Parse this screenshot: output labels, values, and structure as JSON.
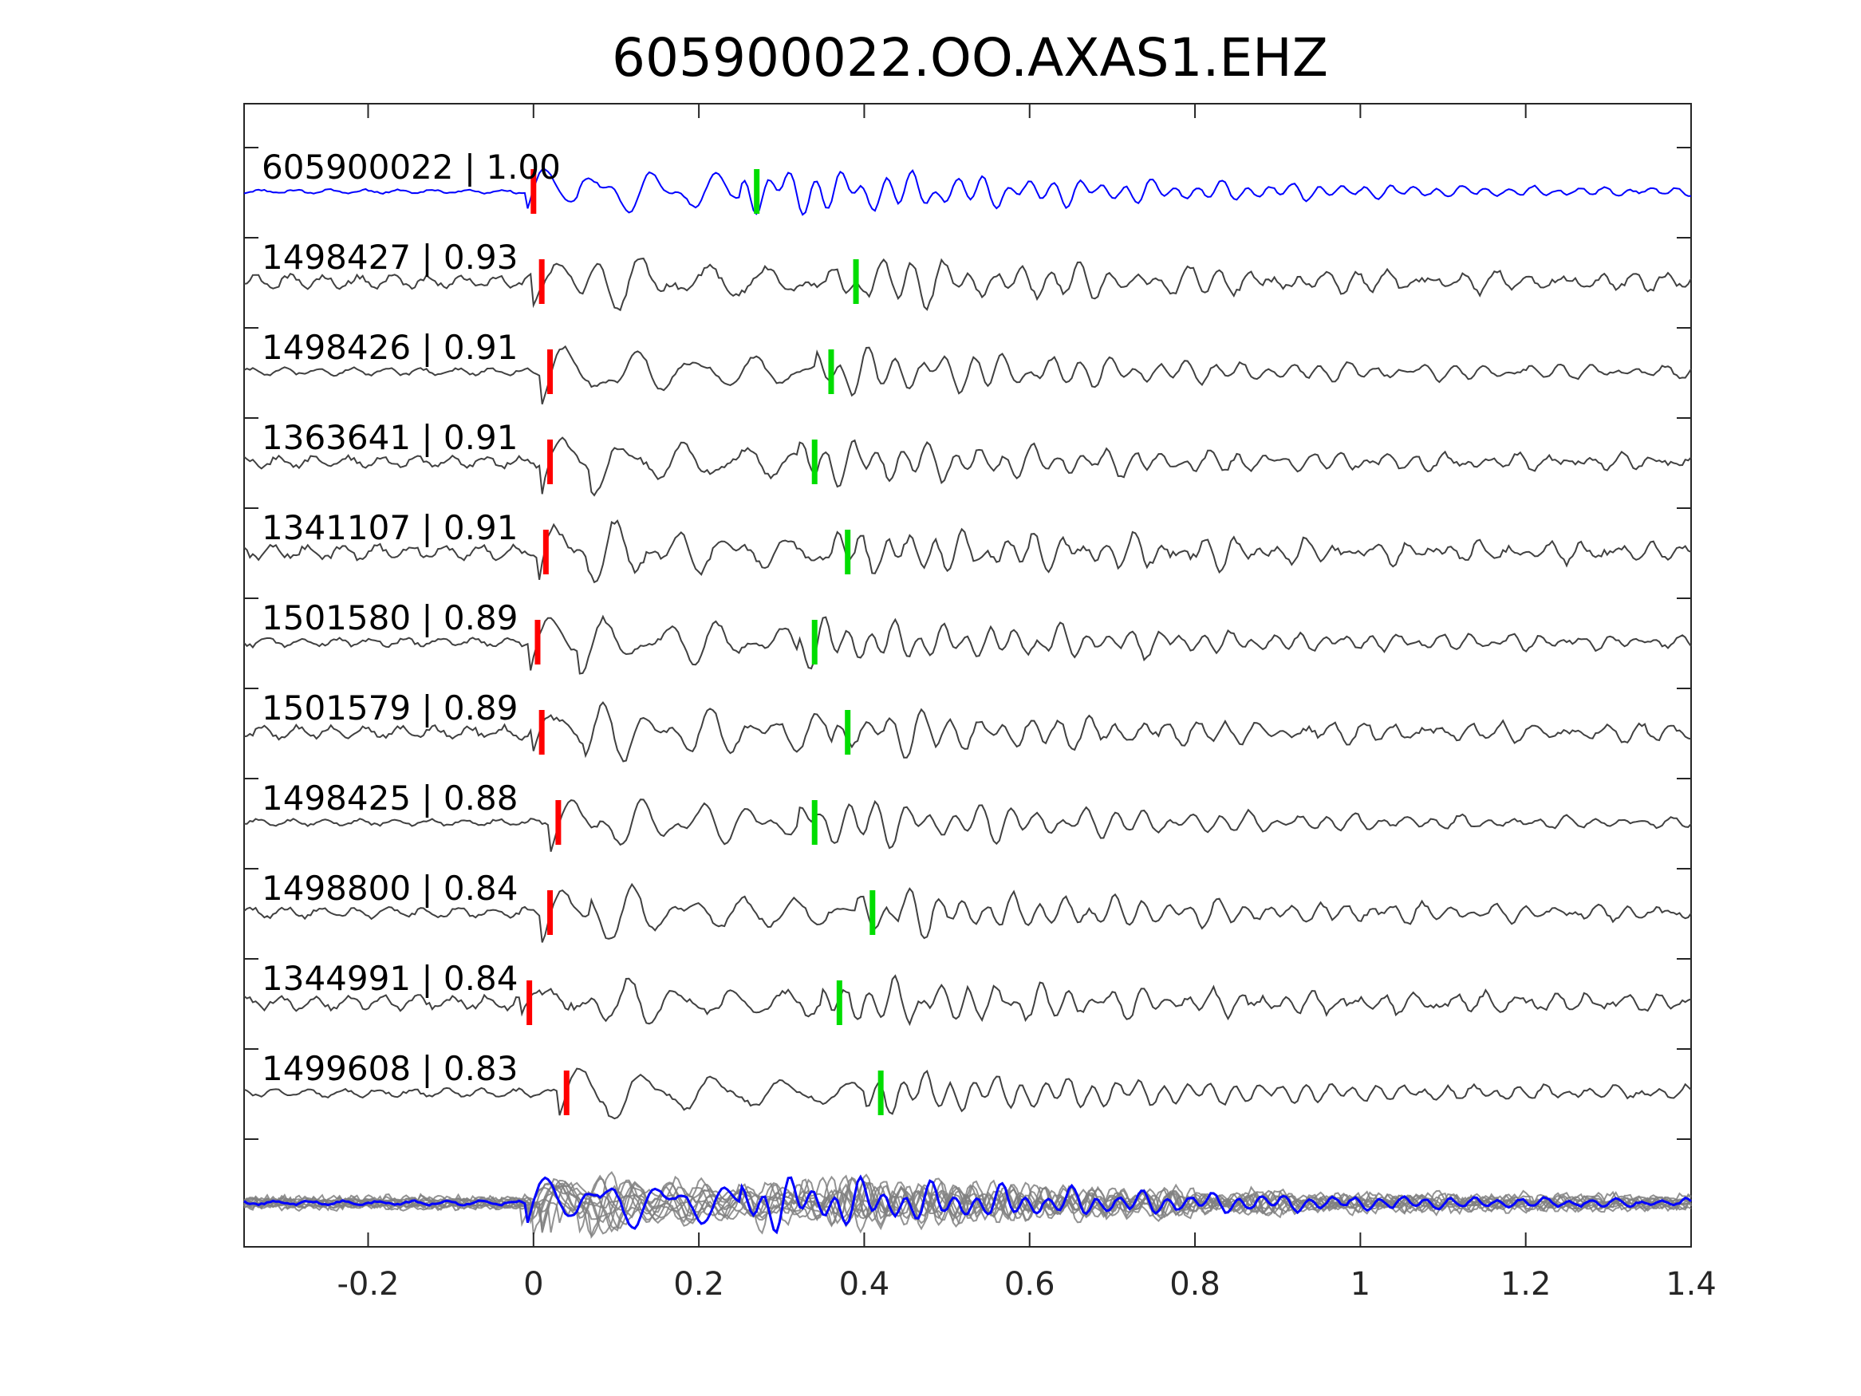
{
  "chart_data": {
    "type": "line",
    "title": "605900022.OO.AXAS1.EHZ",
    "xlabel": "",
    "ylabel": "",
    "xlim": [
      -0.35,
      1.4
    ],
    "x_ticks": [
      -0.2,
      0,
      0.2,
      0.4,
      0.6,
      0.8,
      1,
      1.2,
      1.4
    ],
    "x_tick_labels": [
      "-0.2",
      "0",
      "0.2",
      "0.4",
      "0.6",
      "0.8",
      "1",
      "1.2",
      "1.4"
    ],
    "grid": false,
    "legend": "none",
    "colors": {
      "template": "#0000ff",
      "trace": "#404040",
      "stack": "#808080",
      "p_pick": "#ff0000",
      "s_pick": "#00dd00"
    },
    "traces": [
      {
        "id": "605900022",
        "cc": "1.00",
        "label": "605900022 | 1.00",
        "p_pick": 0.0,
        "s_pick": 0.27,
        "template": true
      },
      {
        "id": "1498427",
        "cc": "0.93",
        "label": "1498427 | 0.93",
        "p_pick": 0.01,
        "s_pick": 0.39
      },
      {
        "id": "1498426",
        "cc": "0.91",
        "label": "1498426 | 0.91",
        "p_pick": 0.02,
        "s_pick": 0.36
      },
      {
        "id": "1363641",
        "cc": "0.91",
        "label": "1363641 | 0.91",
        "p_pick": 0.02,
        "s_pick": 0.34
      },
      {
        "id": "1341107",
        "cc": "0.91",
        "label": "1341107 | 0.91",
        "p_pick": 0.015,
        "s_pick": 0.38
      },
      {
        "id": "1501580",
        "cc": "0.89",
        "label": "1501580 | 0.89",
        "p_pick": 0.005,
        "s_pick": 0.34
      },
      {
        "id": "1501579",
        "cc": "0.89",
        "label": "1501579 | 0.89",
        "p_pick": 0.01,
        "s_pick": 0.38
      },
      {
        "id": "1498425",
        "cc": "0.88",
        "label": "1498425 | 0.88",
        "p_pick": 0.03,
        "s_pick": 0.34
      },
      {
        "id": "1498800",
        "cc": "0.84",
        "label": "1498800 | 0.84",
        "p_pick": 0.02,
        "s_pick": 0.41
      },
      {
        "id": "1344991",
        "cc": "0.84",
        "label": "1344991 | 0.84",
        "p_pick": -0.005,
        "s_pick": 0.37
      },
      {
        "id": "1499608",
        "cc": "0.83",
        "label": "1499608 | 0.83",
        "p_pick": 0.04,
        "s_pick": 0.42
      }
    ],
    "stack": {
      "overlay_count": 11
    }
  }
}
